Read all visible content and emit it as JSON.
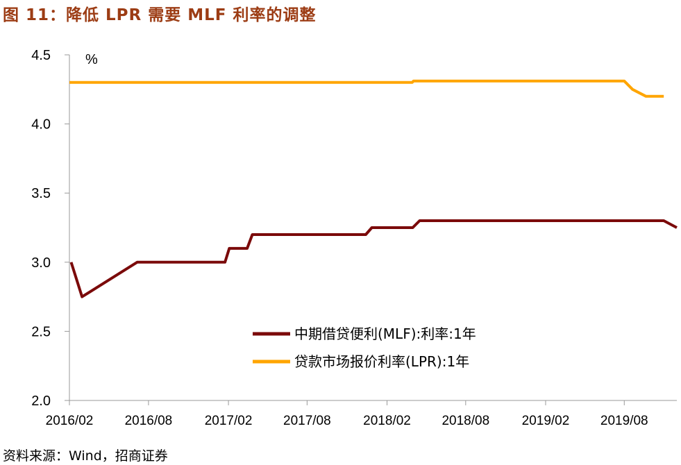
{
  "title": "图 11：降低 LPR 需要 MLF 利率的调整",
  "source": "资料来源：Wind，招商证券",
  "chart_data": {
    "type": "line",
    "unit_label": "%",
    "ylim": [
      2.0,
      4.5
    ],
    "y_ticks": [
      "2.0",
      "2.5",
      "3.0",
      "3.5",
      "4.0",
      "4.5"
    ],
    "x_ticks": [
      "2016/02",
      "2016/08",
      "2017/02",
      "2017/08",
      "2018/02",
      "2018/08",
      "2019/02",
      "2019/08"
    ],
    "x_range": [
      "2016-02-01",
      "2019-11-30"
    ],
    "legend_position": "center",
    "grid": false,
    "series": [
      {
        "name": "中期借贷便利(MLF):利率:1年",
        "color": "#7b0a0a",
        "points": [
          [
            "2016-02-05",
            3.0
          ],
          [
            "2016-03-01",
            2.75
          ],
          [
            "2016-07-06",
            3.0
          ],
          [
            "2017-01-24",
            3.0
          ],
          [
            "2017-02-03",
            3.1
          ],
          [
            "2017-03-16",
            3.1
          ],
          [
            "2017-03-28",
            3.2
          ],
          [
            "2017-12-14",
            3.2
          ],
          [
            "2017-12-28",
            3.25
          ],
          [
            "2018-04-01",
            3.25
          ],
          [
            "2018-04-17",
            3.3
          ],
          [
            "2019-10-31",
            3.3
          ],
          [
            "2019-11-30",
            3.25
          ]
        ]
      },
      {
        "name": "贷款市场报价利率(LPR):1年",
        "color": "#ffa500",
        "points": [
          [
            "2016-02-01",
            4.3
          ],
          [
            "2018-03-31",
            4.3
          ],
          [
            "2018-04-03",
            4.31
          ],
          [
            "2019-08-01",
            4.31
          ],
          [
            "2019-08-20",
            4.25
          ],
          [
            "2019-09-20",
            4.2
          ],
          [
            "2019-10-31",
            4.2
          ]
        ]
      }
    ]
  }
}
